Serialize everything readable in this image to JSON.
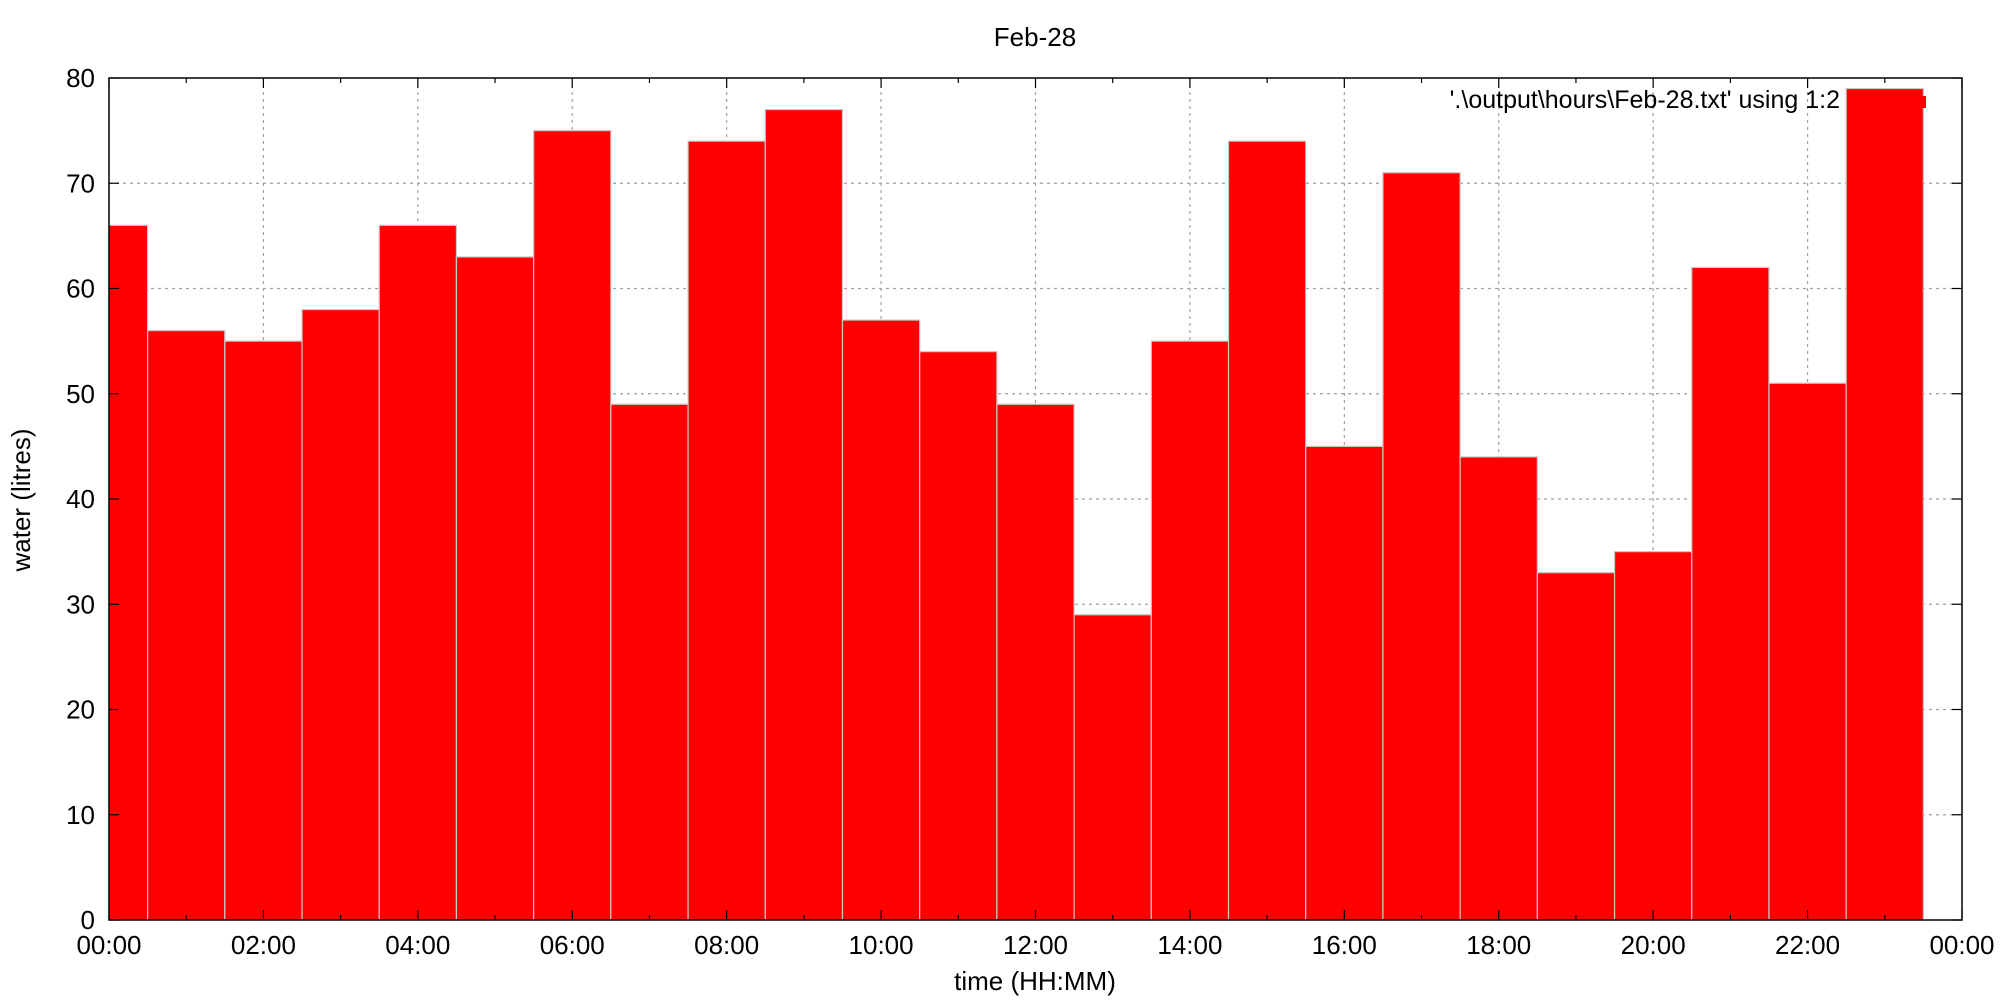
{
  "chart_data": {
    "type": "bar",
    "title": "Feb-28",
    "xlabel": "time (HH:MM)",
    "ylabel": "water (litres)",
    "ylim": [
      0,
      80
    ],
    "xlim": [
      "00:00",
      "00:00"
    ],
    "yticks": [
      "0",
      "10",
      "20",
      "30",
      "40",
      "50",
      "60",
      "70",
      "80"
    ],
    "xticks": [
      "00:00",
      "02:00",
      "04:00",
      "06:00",
      "08:00",
      "10:00",
      "12:00",
      "14:00",
      "16:00",
      "18:00",
      "20:00",
      "22:00",
      "00:00"
    ],
    "grid": true,
    "legend": {
      "position": "top-right",
      "entries": [
        "'.\\output\\hours\\Feb-28.txt' using 1:2"
      ]
    },
    "colors": {
      "bar": "#ff0000",
      "bar_edge": "#c8c8c8"
    },
    "categories": [
      "00:00",
      "01:00",
      "02:00",
      "03:00",
      "04:00",
      "05:00",
      "06:00",
      "07:00",
      "08:00",
      "09:00",
      "10:00",
      "11:00",
      "12:00",
      "13:00",
      "14:00",
      "15:00",
      "16:00",
      "17:00",
      "18:00",
      "19:00",
      "20:00",
      "21:00",
      "22:00",
      "23:00"
    ],
    "series": [
      {
        "name": "'.\\output\\hours\\Feb-28.txt' using 1:2",
        "values": [
          66,
          56,
          55,
          58,
          66,
          63,
          75,
          49,
          74,
          77,
          57,
          54,
          49,
          29,
          55,
          74,
          45,
          71,
          44,
          33,
          35,
          62,
          51,
          79
        ]
      }
    ]
  }
}
